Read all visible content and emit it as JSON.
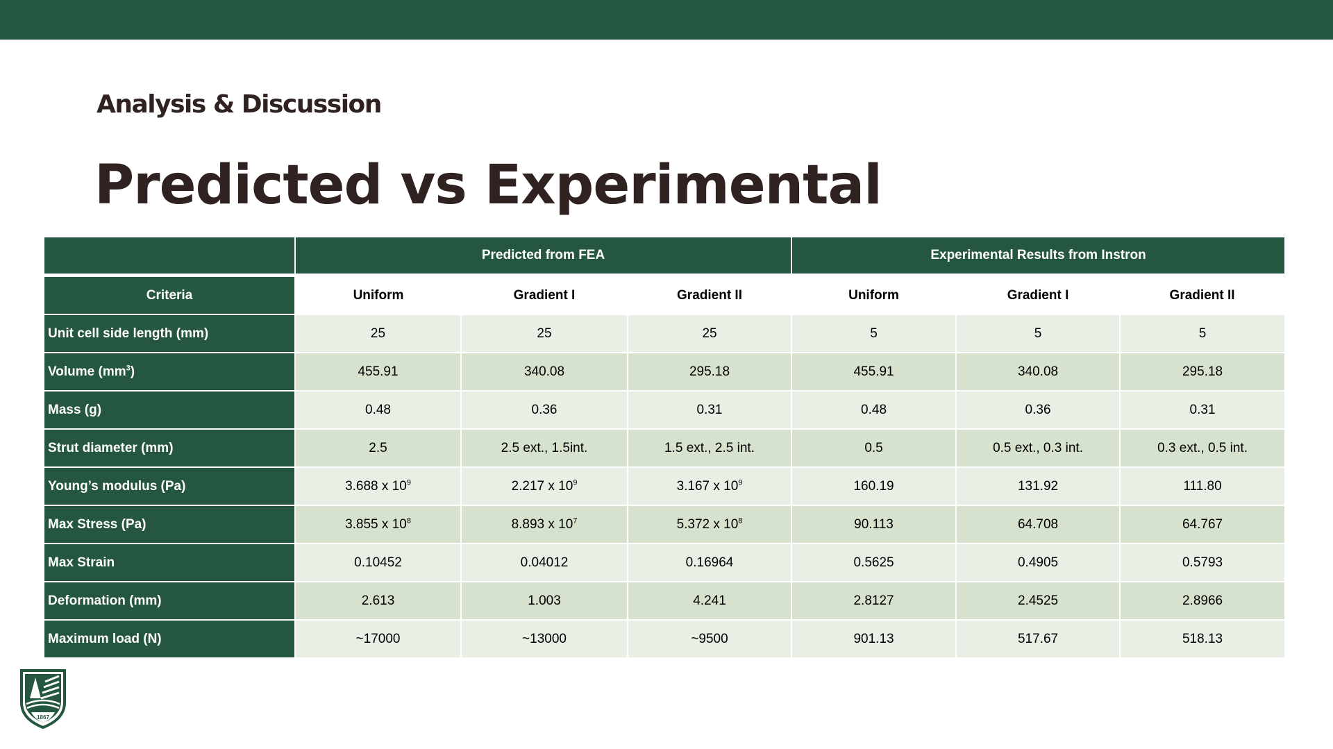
{
  "header": {
    "section": "Analysis & Discussion",
    "title": "Predicted vs Experimental"
  },
  "table": {
    "groups": {
      "predicted": "Predicted from FEA",
      "experimental": "Experimental Results from Instron"
    },
    "criteria_header": "Criteria",
    "columns": [
      "Uniform",
      "Gradient I",
      "Gradient II",
      "Uniform",
      "Gradient I",
      "Gradient II"
    ],
    "rows": [
      {
        "label": "Unit cell side length (mm)",
        "values": [
          "25",
          "25",
          "25",
          "5",
          "5",
          "5"
        ]
      },
      {
        "label": "Volume (mm³)",
        "values": [
          "455.91",
          "340.08",
          "295.18",
          "455.91",
          "340.08",
          "295.18"
        ]
      },
      {
        "label": "Mass (g)",
        "values": [
          "0.48",
          "0.36",
          "0.31",
          "0.48",
          "0.36",
          "0.31"
        ]
      },
      {
        "label": "Strut diameter (mm)",
        "values": [
          "2.5",
          "2.5 ext., 1.5int.",
          "1.5 ext., 2.5 int.",
          "0.5",
          "0.5 ext., 0.3 int.",
          "0.3 ext., 0.5 int."
        ]
      },
      {
        "label": "Young’s modulus (Pa)",
        "values": [
          "3.688 x 10⁹",
          "2.217 x 10⁹",
          "3.167 x 10⁹",
          "160.19",
          "131.92",
          "111.80"
        ]
      },
      {
        "label": "Max Stress (Pa)",
        "values": [
          "3.855 x 10⁸",
          "8.893 x 10⁷",
          "5.372 x 10⁸",
          "90.113",
          "64.708",
          "64.767"
        ]
      },
      {
        "label": "Max Strain",
        "values": [
          "0.10452",
          "0.04012",
          "0.16964",
          "0.5625",
          "0.4905",
          "0.5793"
        ]
      },
      {
        "label": "Deformation (mm)",
        "values": [
          "2.613",
          "1.003",
          "4.241",
          "2.8127",
          "2.4525",
          "2.8966"
        ]
      },
      {
        "label": "Maximum load (N)",
        "values": [
          "~17000",
          "~13000",
          "~9500",
          "901.13",
          "517.67",
          "518.13"
        ]
      }
    ]
  },
  "logo": {
    "year": "1867"
  },
  "colors": {
    "brand_green": "#255740",
    "title_brown": "#2f2220",
    "row_light": "#e9efe5",
    "row_dark": "#d6e2cd"
  }
}
